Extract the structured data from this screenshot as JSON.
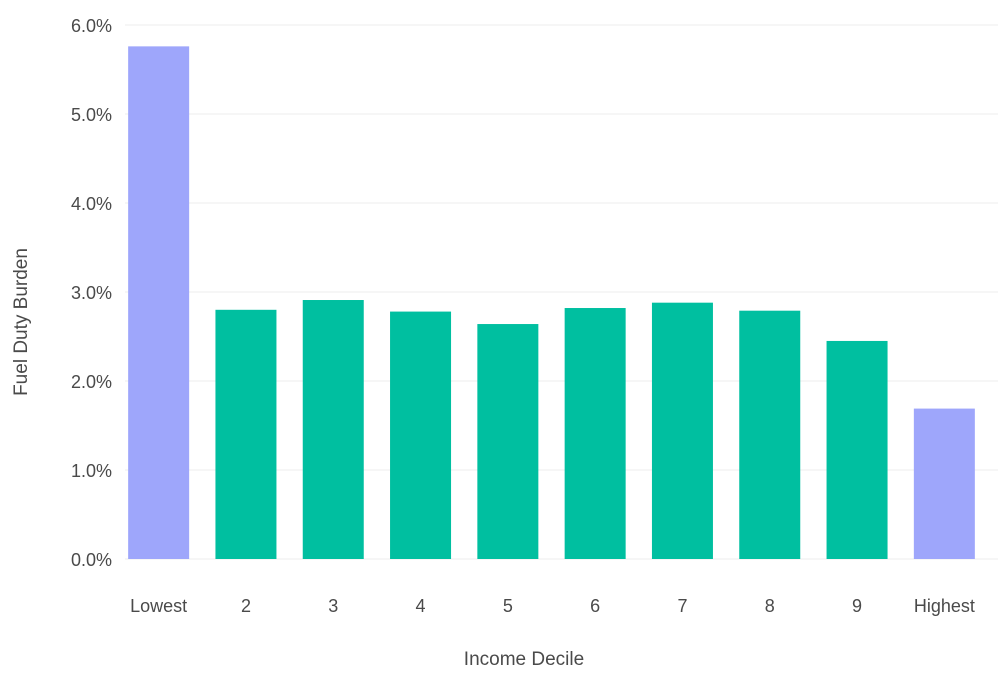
{
  "chart_data": {
    "type": "bar",
    "title": "",
    "xlabel": "Income Decile",
    "ylabel": "Fuel Duty Burden",
    "categories": [
      "Lowest",
      "2",
      "3",
      "4",
      "5",
      "6",
      "7",
      "8",
      "9",
      "Highest"
    ],
    "values": [
      5.76,
      2.8,
      2.91,
      2.78,
      2.64,
      2.82,
      2.88,
      2.79,
      2.45,
      1.69
    ],
    "ylim": [
      0,
      6
    ],
    "yticks": [
      0,
      1,
      2,
      3,
      4,
      5,
      6
    ],
    "ytick_labels": [
      "0.0%",
      "1.0%",
      "2.0%",
      "3.0%",
      "4.0%",
      "5.0%",
      "6.0%"
    ],
    "grid": true,
    "legend": "none",
    "colors": {
      "default": "#00bfa0",
      "highlight": "#9ea6fb"
    },
    "highlighted_categories": [
      "Lowest",
      "Highest"
    ]
  }
}
